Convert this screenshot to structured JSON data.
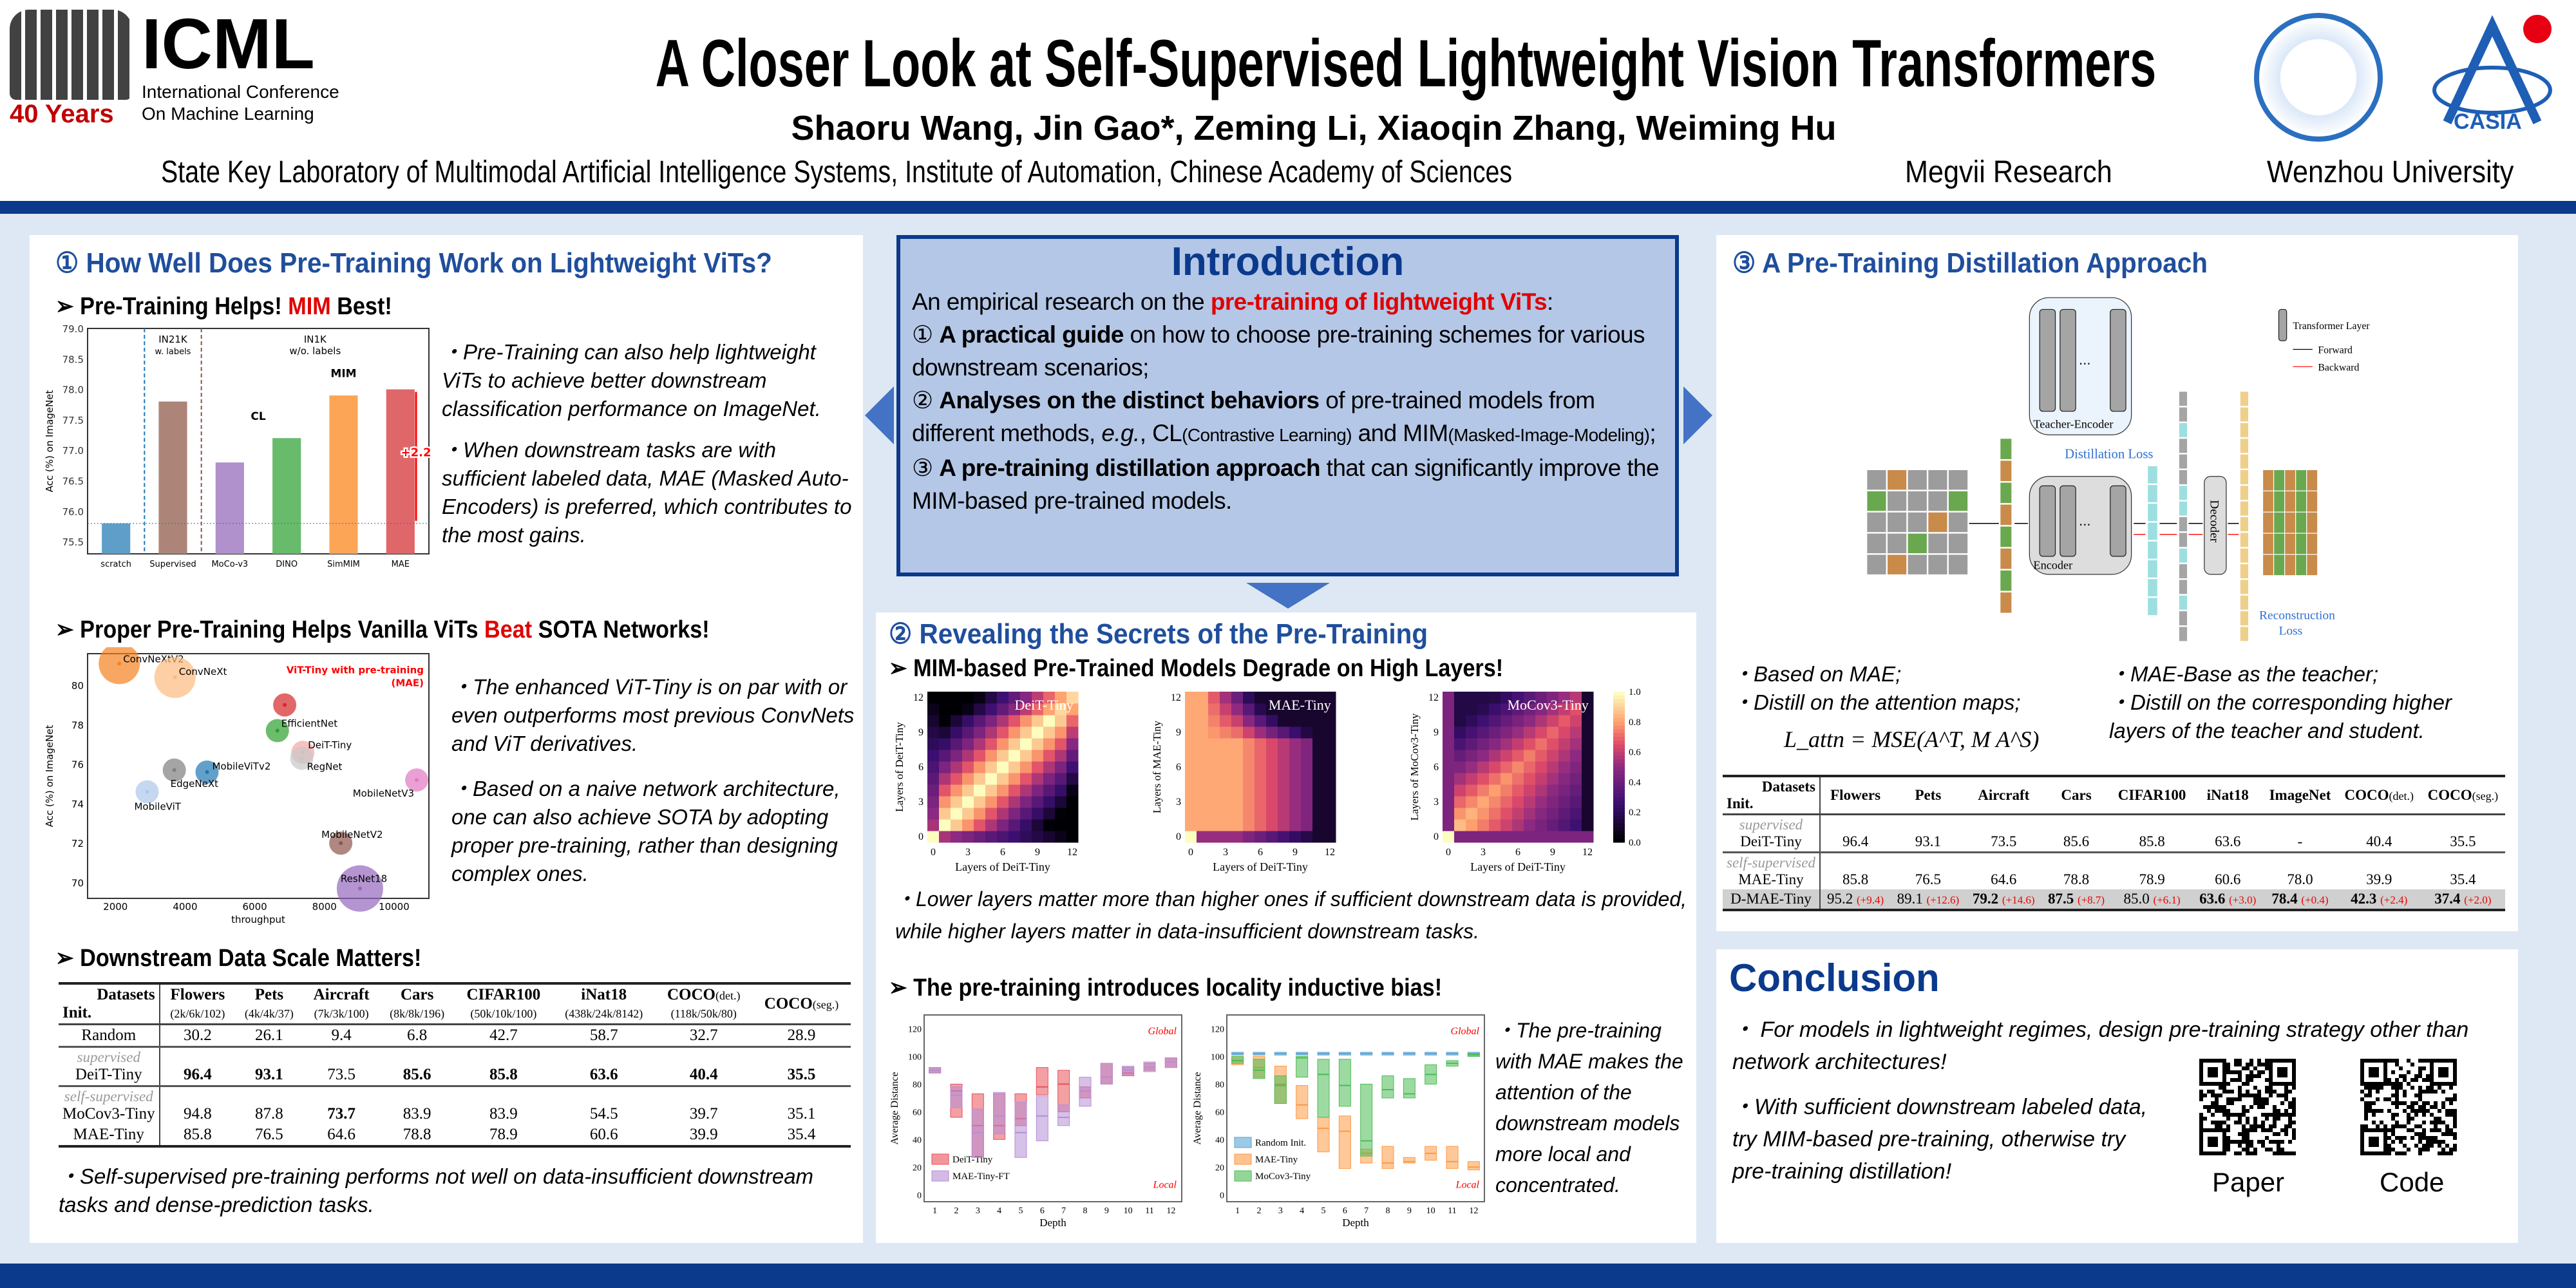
{
  "header": {
    "logo_left_text": "ICML",
    "logo_left_sub1": "International Conference",
    "logo_left_sub2": "On Machine Learning",
    "logo_years": "40 Years",
    "title": "A Closer Look at Self-Supervised Lightweight Vision Transformers",
    "authors": "Shaoru Wang, Jin Gao*, Zeming Li, Xiaoqin Zhang, Weiming Hu",
    "aff1": "State Key Laboratory of Multimodal Artificial Intelligence Systems, Institute of Automation, Chinese Academy of Sciences",
    "aff2": "Megvii Research",
    "aff3": "Wenzhou University",
    "logo_right": "CASIA"
  },
  "s1": {
    "heading": "① How Well Does Pre-Training Work on Lightweight ViTs?",
    "sub1a": "➢ Pre-Training Helps! ",
    "sub1b": "MIM",
    "sub1c": " Best!",
    "b1": "・Pre-Training can also help lightweight ViTs to achieve better downstream classification performance on ImageNet.",
    "b2": "・When downstream tasks are with sufficient labeled data, MAE (Masked Auto-Encoders) is preferred, which contributes to the most gains.",
    "sub2a": "➢ Proper Pre-Training Helps Vanilla ViTs ",
    "sub2b": "Beat",
    "sub2c": " SOTA Networks!",
    "b3": "・The enhanced ViT-Tiny is on par with or even outperforms most previous ConvNets and ViT derivatives.",
    "b4": "・Based on a naive network architecture, one can also achieve SOTA by adopting proper pre-training, rather than designing complex ones.",
    "sub3": "➢ Downstream Data Scale Matters!",
    "b5": "・Self-supervised pre-training performs not well on data-insufficient downstream tasks and dense-prediction tasks.",
    "table": {
      "corner_top": "Datasets",
      "corner_bottom": "Init.",
      "cols": [
        "Flowers",
        "Pets",
        "Aircraft",
        "Cars",
        "CIFAR100",
        "iNat18",
        "COCO",
        "COCO"
      ],
      "col_suffix": [
        "",
        "",
        "",
        "",
        "",
        "",
        "(det.)",
        "(seg.)"
      ],
      "sizes": [
        "(2k/6k/102)",
        "(4k/4k/37)",
        "(7k/3k/100)",
        "(8k/8k/196)",
        "(50k/10k/100)",
        "(438k/24k/8142)",
        "(118k/50k/80)"
      ],
      "group_sup": "supervised",
      "group_self": "self-supervised",
      "rows": [
        {
          "name": "Random",
          "v": [
            "30.2",
            "26.1",
            "9.4",
            "6.8",
            "42.7",
            "58.7",
            "32.7",
            "28.9"
          ]
        },
        {
          "name": "DeiT-Tiny",
          "v": [
            "96.4",
            "93.1",
            "73.5",
            "85.6",
            "85.8",
            "63.6",
            "40.4",
            "35.5"
          ]
        },
        {
          "name": "MoCov3-Tiny",
          "v": [
            "94.8",
            "87.8",
            "73.7",
            "83.9",
            "83.9",
            "54.5",
            "39.7",
            "35.1"
          ]
        },
        {
          "name": "MAE-Tiny",
          "v": [
            "85.8",
            "76.5",
            "64.6",
            "78.8",
            "78.9",
            "60.6",
            "39.9",
            "35.4"
          ]
        }
      ]
    }
  },
  "intro": {
    "title": "Introduction",
    "lead_a": "An empirical research on the ",
    "lead_b": "pre-training of lightweight ViTs",
    "lead_c": ":",
    "i1n": "①",
    "i1b": "A practical guide",
    "i1r": " on how to choose pre-training schemes for various downstream scenarios;",
    "i2n": "②",
    "i2b": "Analyses on the distinct behaviors",
    "i2r": " of pre-trained models from different methods, ",
    "i2eg": "e.g.",
    "i2r2": ", CL",
    "i2s1": "(Contrastive Learning)",
    "i2r3": " and MIM",
    "i2s2": "(Masked-Image-Modeling)",
    "i2r4": ";",
    "i3n": "③",
    "i3b": "A pre-training distillation approach",
    "i3r": " that can significantly improve the MIM-based pre-trained models."
  },
  "s2": {
    "heading": "② Revealing the Secrets of the Pre-Training",
    "sub1": "➢ MIM-based Pre-Trained Models Degrade on High Layers!",
    "b1": "・Lower layers matter more than higher ones if sufficient downstream data is provided, while higher layers matter in data-insufficient downstream tasks.",
    "sub2": "➢ The pre-training introduces locality inductive bias!",
    "b2": "・The pre-training with MAE makes the attention of the downstream models more local and concentrated."
  },
  "s3": {
    "heading": "③ A Pre-Training Distillation Approach",
    "diagram": {
      "teacher": "Teacher-Encoder",
      "encoder": "Encoder",
      "decoder": "Decoder",
      "distill": "Distillation Loss",
      "recon1": "Reconstruction",
      "recon2": "Loss",
      "legend_layer": "Transformer Layer",
      "legend_fwd": "Forward",
      "legend_bwd": "Backward",
      "dots": "···"
    },
    "b1": "・Based on MAE;",
    "b2": "・Distill on the attention maps;",
    "b3": "・MAE-Base as the teacher;",
    "b4": "・Distill on the corresponding higher layers of the teacher and student.",
    "formula": "L_attn = MSE(A^T, M A^S)",
    "table": {
      "corner_top": "Datasets",
      "corner_bottom": "Init.",
      "cols": [
        "Flowers",
        "Pets",
        "Aircraft",
        "Cars",
        "CIFAR100",
        "iNat18",
        "ImageNet",
        "COCO",
        "COCO"
      ],
      "col_suffix": [
        "",
        "",
        "",
        "",
        "",
        "",
        "",
        "(det.)",
        "(seg.)"
      ],
      "group_sup": "supervised",
      "group_self": "self-supervised",
      "rows": [
        {
          "name": "DeiT-Tiny",
          "v": [
            "96.4",
            "93.1",
            "73.5",
            "85.6",
            "85.8",
            "63.6",
            "-",
            "40.4",
            "35.5"
          ]
        },
        {
          "name": "MAE-Tiny",
          "v": [
            "85.8",
            "76.5",
            "64.6",
            "78.8",
            "78.9",
            "60.6",
            "78.0",
            "39.9",
            "35.4"
          ]
        },
        {
          "name": "D-MAE-Tiny",
          "v": [
            "95.2",
            "89.1",
            "79.2",
            "87.5",
            "85.0",
            "63.6",
            "78.4",
            "42.3",
            "37.4"
          ],
          "inc": [
            "(+9.4)",
            "(+12.6)",
            "(+14.6)",
            "(+8.7)",
            "(+6.1)",
            "(+3.0)",
            "(+0.4)",
            "(+2.4)",
            "(+2.0)"
          ]
        }
      ]
    }
  },
  "conclusion": {
    "title": "Conclusion",
    "b1": "・ For models in lightweight regimes, design pre-training strategy other than network architectures!",
    "b2": "・With sufficient downstream labeled data, try MIM-based pre-training, otherwise try pre-training distillation!",
    "qr1": "Paper",
    "qr2": "Code"
  },
  "chart_data": [
    {
      "type": "bar",
      "title": "",
      "ylabel": "Acc (%) on ImageNet",
      "xlabel": "",
      "ylim": [
        75.3,
        79.0
      ],
      "categories": [
        "scratch",
        "Supervised",
        "MoCo-v3",
        "DINO",
        "SimMIM",
        "MAE"
      ],
      "values": [
        75.8,
        77.8,
        76.8,
        77.2,
        77.9,
        78.0
      ],
      "colors": [
        "#5f9ec9",
        "#ac8578",
        "#b091cc",
        "#68bb6b",
        "#fda556",
        "#e06769"
      ],
      "yticks": [
        "75.5",
        "76.0",
        "76.5",
        "77.0",
        "77.5",
        "78.0",
        "78.5",
        "79.0"
      ],
      "annotations": {
        "in21k": "IN21K",
        "in21k2": "w. labels",
        "in1k": "IN1K",
        "in1k2": "w/o. labels",
        "cl": "CL",
        "mim": "MIM",
        "gain": "+2.2"
      }
    },
    {
      "type": "scatter",
      "xlabel": "throughput",
      "ylabel": "Acc (%) on ImageNet",
      "xlim": [
        1200,
        11000
      ],
      "ylim": [
        69.2,
        81.6
      ],
      "xticks": [
        "2000",
        "4000",
        "6000",
        "8000",
        "10000"
      ],
      "yticks": [
        "70",
        "72",
        "74",
        "76",
        "78",
        "80"
      ],
      "highlight": "ViT-Tiny with pre-training",
      "highlight2": "(MAE)",
      "points": [
        {
          "name": "ConvNeXtV2",
          "x": 2110,
          "y": 81.1,
          "color": "#f5821f"
        },
        {
          "name": "ConvNeXt",
          "x": 3710,
          "y": 80.4,
          "color": "#fdb97d"
        },
        {
          "name": "ViT-Tiny (MAE)",
          "x": 6860,
          "y": 79.0,
          "color": "#d62728"
        },
        {
          "name": "EfficientNet",
          "x": 6650,
          "y": 77.7,
          "color": "#2ca02c"
        },
        {
          "name": "DeiT-Tiny",
          "x": 7380,
          "y": 76.6,
          "color": "#f4a6a8"
        },
        {
          "name": "RegNet",
          "x": 7350,
          "y": 76.3,
          "color": "#c7c7c7"
        },
        {
          "name": "MobileViTv2",
          "x": 4630,
          "y": 75.6,
          "color": "#1f77b4"
        },
        {
          "name": "EdgeNeXt",
          "x": 3690,
          "y": 75.7,
          "color": "#7f7f7f"
        },
        {
          "name": "MobileViT",
          "x": 2910,
          "y": 74.6,
          "color": "#aec7e8"
        },
        {
          "name": "MobileNetV3",
          "x": 10650,
          "y": 75.2,
          "color": "#e377c2"
        },
        {
          "name": "MobileNetV2",
          "x": 8470,
          "y": 72.0,
          "color": "#8c564b"
        },
        {
          "name": "ResNet18",
          "x": 9020,
          "y": 69.7,
          "color": "#9467bd"
        }
      ]
    },
    {
      "type": "heatmap",
      "panels": [
        "DeiT-Tiny",
        "MAE-Tiny",
        "MoCov3-Tiny"
      ],
      "xlabel": "Layers of DeiT-Tiny",
      "ylabels": [
        "Layers of DeiT-Tiny",
        "Layers of MAE-Tiny",
        "Layers of MoCov3-Tiny"
      ],
      "ticks": [
        "0",
        "3",
        "6",
        "9",
        "12"
      ],
      "colorbar": [
        "0.0",
        "0.2",
        "0.4",
        "0.6",
        "0.8",
        "1.0"
      ],
      "range": [
        0,
        1
      ]
    },
    {
      "type": "box",
      "xlabel": "Depth",
      "ylabel": "Average Distance",
      "ylim": [
        -5,
        130
      ],
      "yticks": [
        "0",
        "20",
        "40",
        "60",
        "80",
        "100",
        "120"
      ],
      "depths": [
        "1",
        "2",
        "3",
        "4",
        "5",
        "6",
        "7",
        "8",
        "9",
        "10",
        "11",
        "12"
      ],
      "global": "Global",
      "local": "Local",
      "left": [
        {
          "name": "DeiT-Tiny",
          "color": "#e8525a",
          "med": [
            90,
            75,
            50,
            50,
            55,
            78,
            80,
            75,
            85,
            88,
            92,
            96
          ],
          "q1": [
            88,
            56,
            27,
            40,
            50,
            72,
            60,
            70,
            80,
            86,
            90,
            92
          ],
          "q3": [
            92,
            80,
            73,
            73,
            73,
            92,
            90,
            78,
            95,
            92,
            95,
            99
          ]
        },
        {
          "name": "MAE-Tiny-FT",
          "color": "#b58ed6",
          "med": [
            90,
            72,
            45,
            57,
            45,
            57,
            56,
            75,
            85,
            90,
            92,
            96
          ],
          "q1": [
            88,
            63,
            27,
            44,
            27,
            39,
            50,
            64,
            80,
            87,
            89,
            92
          ],
          "q3": [
            92,
            78,
            62,
            74,
            67,
            71,
            65,
            85,
            95,
            93,
            96,
            99
          ]
        }
      ],
      "right": [
        {
          "name": "Random Init.",
          "color": "#5aa5d6",
          "med": [
            102,
            102,
            102,
            102,
            102,
            102,
            102,
            102,
            102,
            102,
            102,
            102
          ],
          "q1": [
            101,
            101,
            101,
            101,
            101,
            101,
            101,
            101,
            101,
            101,
            101,
            101
          ],
          "q3": [
            103,
            103,
            103,
            103,
            103,
            103,
            103,
            103,
            103,
            103,
            103,
            103
          ]
        },
        {
          "name": "MAE-Tiny",
          "color": "#fd9a45",
          "med": [
            97,
            92,
            80,
            65,
            48,
            46,
            30,
            23,
            24,
            30,
            24,
            20
          ],
          "q1": [
            94,
            85,
            66,
            55,
            31,
            19,
            23,
            19,
            23,
            25,
            19,
            18
          ],
          "q3": [
            100,
            100,
            93,
            79,
            56,
            57,
            33,
            35,
            27,
            35,
            35,
            24
          ]
        },
        {
          "name": "MoCov3-Tiny",
          "color": "#4dbb55",
          "med": [
            97,
            90,
            79,
            99,
            87,
            79,
            39,
            76,
            73,
            87,
            95,
            101
          ],
          "q1": [
            95,
            84,
            66,
            85,
            56,
            64,
            28,
            70,
            70,
            80,
            93,
            100
          ],
          "q3": [
            100,
            98,
            86,
            100,
            98,
            98,
            80,
            86,
            84,
            94,
            97,
            102
          ]
        }
      ]
    }
  ]
}
